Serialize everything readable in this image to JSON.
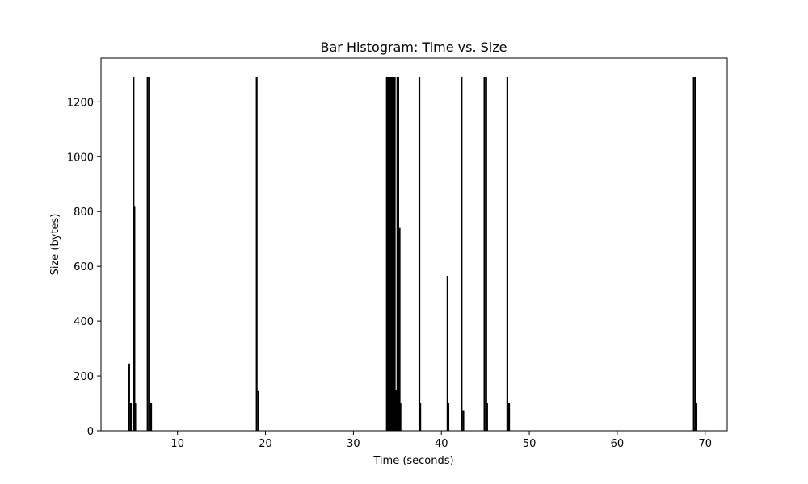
{
  "chart_data": {
    "type": "bar",
    "title": "Bar Histogram: Time vs. Size",
    "xlabel": "Time (seconds)",
    "ylabel": "Size (bytes)",
    "xlim": [
      1.3,
      72.5
    ],
    "ylim": [
      0,
      1360
    ],
    "xticks": [
      10,
      20,
      30,
      40,
      50,
      60,
      70
    ],
    "yticks": [
      0,
      200,
      400,
      600,
      800,
      1000,
      1200
    ],
    "grid": false,
    "bar_width": 0.2,
    "color": "#000000",
    "x": [
      4.5,
      4.7,
      5.0,
      5.1,
      5.2,
      6.6,
      6.8,
      7.0,
      19.0,
      19.2,
      33.8,
      33.95,
      34.1,
      34.25,
      34.4,
      34.55,
      34.7,
      34.85,
      35.0,
      35.1,
      35.25,
      35.35,
      37.5,
      37.6,
      40.7,
      40.8,
      42.3,
      42.5,
      44.9,
      45.1,
      45.2,
      47.5,
      47.7,
      68.7,
      68.9,
      69.0
    ],
    "values": [
      245,
      100,
      1290,
      820,
      100,
      1290,
      1290,
      100,
      1290,
      145,
      1290,
      1290,
      1290,
      1290,
      1290,
      1290,
      1290,
      150,
      1290,
      1290,
      740,
      100,
      1290,
      100,
      565,
      100,
      1290,
      75,
      1290,
      1290,
      100,
      1290,
      100,
      1290,
      1290,
      100
    ]
  }
}
